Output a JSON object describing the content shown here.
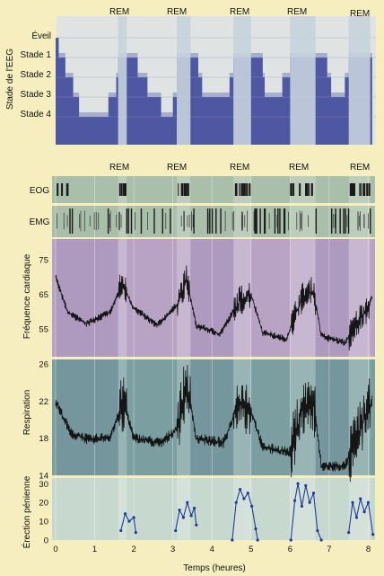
{
  "chart_data": [
    {
      "type": "step",
      "panel": "hypnogram",
      "ylabel": "Stade de l'EEG",
      "stage_labels": [
        "Éveil",
        "Stade 1",
        "Stade 2",
        "Stade 3",
        "Stade 4"
      ],
      "rem_label": "REM",
      "rem_periods_hours": [
        [
          1.6,
          1.82
        ],
        [
          3.1,
          3.45
        ],
        [
          4.55,
          5.0
        ],
        [
          6.0,
          6.65
        ],
        [
          7.5,
          8.05
        ]
      ],
      "stage_profile_hours_stage": [
        [
          0,
          0
        ],
        [
          0.08,
          1
        ],
        [
          0.25,
          2
        ],
        [
          0.45,
          3
        ],
        [
          0.6,
          4
        ],
        [
          1.35,
          3
        ],
        [
          1.55,
          2
        ],
        [
          1.6,
          1
        ],
        [
          1.82,
          1
        ],
        [
          2.1,
          2
        ],
        [
          2.35,
          3
        ],
        [
          2.7,
          4
        ],
        [
          3.0,
          3
        ],
        [
          3.1,
          1
        ],
        [
          3.45,
          1
        ],
        [
          3.65,
          2
        ],
        [
          3.75,
          3
        ],
        [
          4.45,
          2
        ],
        [
          4.55,
          1
        ],
        [
          5.0,
          1
        ],
        [
          5.3,
          2
        ],
        [
          5.35,
          3
        ],
        [
          5.8,
          2
        ],
        [
          6.0,
          1
        ],
        [
          6.65,
          1
        ],
        [
          6.95,
          2
        ],
        [
          7.05,
          3
        ],
        [
          7.4,
          2
        ],
        [
          7.5,
          1
        ],
        [
          8.05,
          1
        ],
        [
          8.1,
          1
        ]
      ]
    },
    {
      "type": "events",
      "panel": "eog-emg",
      "rem_label": "REM",
      "series": [
        {
          "name": "EOG"
        },
        {
          "name": "EMG"
        }
      ]
    },
    {
      "type": "line",
      "panel": "heart",
      "ylabel": "Fréquence cardiaque",
      "yticks": [
        "75",
        "65",
        "55"
      ],
      "ylim": [
        47,
        81
      ],
      "key_points_hours": [
        [
          0,
          70
        ],
        [
          0.3,
          60
        ],
        [
          0.8,
          56.5
        ],
        [
          1.4,
          60
        ],
        [
          1.7,
          68
        ],
        [
          2.0,
          61
        ],
        [
          2.6,
          56
        ],
        [
          3.1,
          62
        ],
        [
          3.35,
          69
        ],
        [
          3.6,
          56
        ],
        [
          4.2,
          53.5
        ],
        [
          4.7,
          63
        ],
        [
          5.0,
          65
        ],
        [
          5.3,
          54
        ],
        [
          5.9,
          52
        ],
        [
          6.3,
          64
        ],
        [
          6.6,
          66
        ],
        [
          6.8,
          53
        ],
        [
          7.4,
          51
        ],
        [
          7.9,
          60
        ],
        [
          8.1,
          64
        ]
      ]
    },
    {
      "type": "line",
      "panel": "respiration",
      "ylabel": "Respiration",
      "yticks": [
        "26",
        "22",
        "18",
        "14"
      ],
      "ylim": [
        14,
        26.5
      ],
      "key_points_hours": [
        [
          0,
          22
        ],
        [
          0.4,
          18.5
        ],
        [
          0.9,
          17.8
        ],
        [
          1.4,
          18.2
        ],
        [
          1.75,
          22
        ],
        [
          2.0,
          18
        ],
        [
          2.7,
          17.5
        ],
        [
          3.1,
          19
        ],
        [
          3.35,
          24
        ],
        [
          3.6,
          18
        ],
        [
          4.3,
          17.5
        ],
        [
          4.7,
          22
        ],
        [
          5.0,
          21
        ],
        [
          5.3,
          17
        ],
        [
          6.0,
          16.5
        ],
        [
          6.3,
          21
        ],
        [
          6.6,
          22
        ],
        [
          6.8,
          15
        ],
        [
          7.4,
          15
        ],
        [
          7.8,
          19
        ],
        [
          8.1,
          22
        ]
      ]
    },
    {
      "type": "line",
      "panel": "erection",
      "ylabel": "Érection pénienne",
      "yticks": [
        "30",
        "20",
        "10",
        "0"
      ],
      "ylim": [
        0,
        33
      ],
      "xlabel": "Temps (heures)",
      "xticks": [
        "0",
        "1",
        "2",
        "3",
        "4",
        "5",
        "6",
        "7",
        "8"
      ],
      "xlim": [
        0,
        8.15
      ],
      "series": [
        {
          "points": [
            [
              1.67,
              5
            ],
            [
              1.78,
              14
            ],
            [
              1.88,
              10
            ],
            [
              2.0,
              12
            ],
            [
              2.05,
              4
            ]
          ]
        },
        {
          "points": [
            [
              3.07,
              5
            ],
            [
              3.17,
              16
            ],
            [
              3.27,
              12
            ],
            [
              3.37,
              20
            ],
            [
              3.47,
              13
            ],
            [
              3.55,
              17
            ],
            [
              3.6,
              8
            ]
          ]
        },
        {
          "points": [
            [
              4.52,
              0
            ],
            [
              4.62,
              20
            ],
            [
              4.72,
              27
            ],
            [
              4.82,
              22
            ],
            [
              4.92,
              25
            ],
            [
              5.02,
              18
            ],
            [
              5.12,
              6
            ],
            [
              5.17,
              0
            ]
          ]
        },
        {
          "points": [
            [
              6.02,
              0
            ],
            [
              6.12,
              21
            ],
            [
              6.2,
              30
            ],
            [
              6.3,
              18
            ],
            [
              6.4,
              29
            ],
            [
              6.5,
              20
            ],
            [
              6.6,
              25
            ],
            [
              6.7,
              5
            ],
            [
              6.8,
              0
            ]
          ]
        },
        {
          "points": [
            [
              7.5,
              4
            ],
            [
              7.6,
              20
            ],
            [
              7.7,
              12
            ],
            [
              7.8,
              22
            ],
            [
              7.9,
              15
            ],
            [
              8.0,
              20
            ],
            [
              8.12,
              3
            ]
          ]
        }
      ]
    }
  ]
}
